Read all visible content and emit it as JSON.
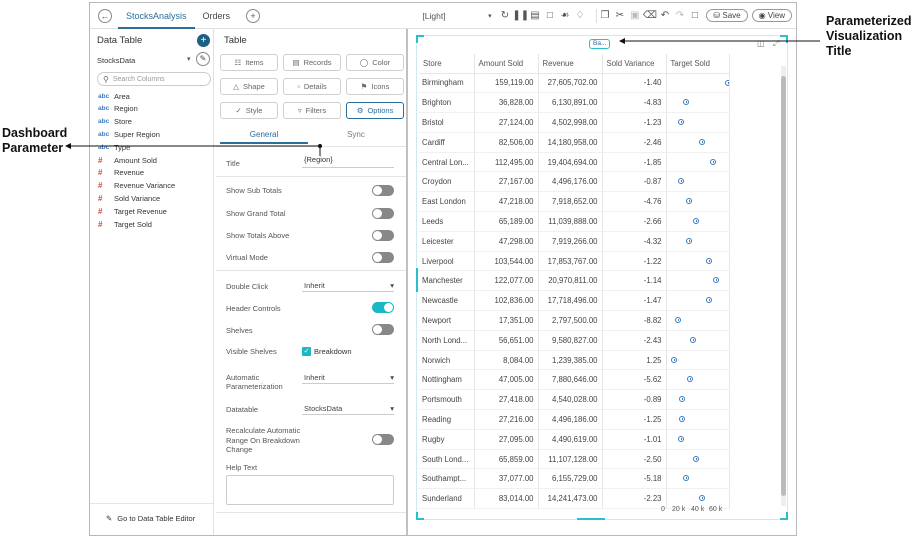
{
  "annotations": {
    "left": [
      "Dashboard",
      "Parameter"
    ],
    "right": [
      "Parameterized",
      "Visualization",
      "Title"
    ]
  },
  "topbar": {
    "tabs": [
      "StocksAnalysis",
      "Orders"
    ],
    "theme": "[Light]",
    "save_label": "Save",
    "view_label": "View"
  },
  "data_panel": {
    "title": "Data Table",
    "source": "StocksData",
    "search_placeholder": "Search Columns",
    "fields": [
      {
        "kind": "text",
        "name": "Area"
      },
      {
        "kind": "text",
        "name": "Region"
      },
      {
        "kind": "text",
        "name": "Store"
      },
      {
        "kind": "text",
        "name": "Super Region"
      },
      {
        "kind": "text",
        "name": "Type"
      },
      {
        "kind": "number",
        "name": "Amount Sold"
      },
      {
        "kind": "number",
        "name": "Revenue"
      },
      {
        "kind": "number",
        "name": "Revenue Variance"
      },
      {
        "kind": "number",
        "name": "Sold Variance"
      },
      {
        "kind": "number",
        "name": "Target Revenue"
      },
      {
        "kind": "number",
        "name": "Target Sold"
      }
    ],
    "footer_link": "Go to Data Table Editor"
  },
  "settings": {
    "title": "Table",
    "buttons": [
      "Items",
      "Records",
      "Color",
      "Shape",
      "Details",
      "Icons",
      "Style",
      "Filters",
      "Options"
    ],
    "tabs": [
      "General",
      "Sync"
    ],
    "title_label": "Title",
    "title_value": "{Region}",
    "toggles": [
      {
        "label": "Show Sub Totals",
        "on": false
      },
      {
        "label": "Show Grand Total",
        "on": false
      },
      {
        "label": "Show Totals Above",
        "on": false
      },
      {
        "label": "Virtual Mode",
        "on": false
      }
    ],
    "double_click_label": "Double Click",
    "double_click_value": "Inherit",
    "header_controls_label": "Header Controls",
    "shelves_label": "Shelves",
    "visible_shelves_label": "Visible Shelves",
    "breakdown_label": "Breakdown",
    "auto_param_label": [
      "Automatic",
      "Parameterization"
    ],
    "auto_param_value": "Inherit",
    "datatable_label": "Datatable",
    "datatable_value": "StocksData",
    "recalc_label": [
      "Recalculate Automatic",
      "Range On Breakdown",
      "Change"
    ],
    "help_text_label": "Help Text"
  },
  "table": {
    "title_chip": "Ba...",
    "columns": [
      "Store",
      "Amount Sold",
      "Revenue",
      "Sold Variance",
      "Target Sold"
    ],
    "axis_ticks": [
      "0",
      "20 k",
      "40 k",
      "60 k"
    ],
    "rows": [
      {
        "store": "Birmingham",
        "amount": "159,119.00",
        "revenue": "27,605,702.00",
        "variance": "-1.40",
        "target": 157000
      },
      {
        "store": "Brighton",
        "amount": "36,828.00",
        "revenue": "6,130,891.00",
        "variance": "-4.83",
        "target": 38700
      },
      {
        "store": "Bristol",
        "amount": "27,124.00",
        "revenue": "4,502,998.00",
        "variance": "-1.23",
        "target": 27500
      },
      {
        "store": "Cardiff",
        "amount": "82,506.00",
        "revenue": "14,180,958.00",
        "variance": "-2.46",
        "target": 84600
      },
      {
        "store": "Central Lon...",
        "amount": "112,495.00",
        "revenue": "19,404,694.00",
        "variance": "-1.85",
        "target": 114600
      },
      {
        "store": "Croydon",
        "amount": "27,167.00",
        "revenue": "4,496,176.00",
        "variance": "-0.87",
        "target": 27400
      },
      {
        "store": "East London",
        "amount": "47,218.00",
        "revenue": "7,918,652.00",
        "variance": "-4.76",
        "target": 49600
      },
      {
        "store": "Leeds",
        "amount": "65,189.00",
        "revenue": "11,039,888.00",
        "variance": "-2.66",
        "target": 67000
      },
      {
        "store": "Leicester",
        "amount": "47,298.00",
        "revenue": "7,919,266.00",
        "variance": "-4.32",
        "target": 49400
      },
      {
        "store": "Liverpool",
        "amount": "103,544.00",
        "revenue": "17,853,767.00",
        "variance": "-1.22",
        "target": 104800
      },
      {
        "store": "Manchester",
        "amount": "122,077.00",
        "revenue": "20,970,811.00",
        "variance": "-1.14",
        "target": 123500
      },
      {
        "store": "Newcastle",
        "amount": "102,836.00",
        "revenue": "17,718,496.00",
        "variance": "-1.47",
        "target": 104400
      },
      {
        "store": "Newport",
        "amount": "17,351.00",
        "revenue": "2,797,500.00",
        "variance": "-8.82",
        "target": 19000
      },
      {
        "store": "North Lond...",
        "amount": "56,651.00",
        "revenue": "9,580,827.00",
        "variance": "-2.43",
        "target": 58100
      },
      {
        "store": "Norwich",
        "amount": "8,084.00",
        "revenue": "1,239,385.00",
        "variance": "1.25",
        "target": 8000
      },
      {
        "store": "Nottingham",
        "amount": "47,005.00",
        "revenue": "7,880,646.00",
        "variance": "-5.62",
        "target": 49800
      },
      {
        "store": "Portsmouth",
        "amount": "27,418.00",
        "revenue": "4,540,028.00",
        "variance": "-0.89",
        "target": 27700
      },
      {
        "store": "Reading",
        "amount": "27,216.00",
        "revenue": "4,496,186.00",
        "variance": "-1.25",
        "target": 27600
      },
      {
        "store": "Rugby",
        "amount": "27,095.00",
        "revenue": "4,490,619.00",
        "variance": "-1.01",
        "target": 27400
      },
      {
        "store": "South Lond...",
        "amount": "65,859.00",
        "revenue": "11,107,128.00",
        "variance": "-2.50",
        "target": 67500
      },
      {
        "store": "Southampt...",
        "amount": "37,077.00",
        "revenue": "6,155,729.00",
        "variance": "-5.18",
        "target": 39100
      },
      {
        "store": "Sunderland",
        "amount": "83,014.00",
        "revenue": "14,241,473.00",
        "variance": "-2.23",
        "target": 84900
      }
    ]
  }
}
